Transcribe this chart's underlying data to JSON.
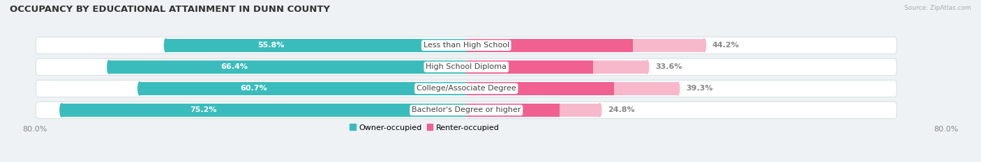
{
  "title": "OCCUPANCY BY EDUCATIONAL ATTAINMENT IN DUNN COUNTY",
  "source": "Source: ZipAtlas.com",
  "categories": [
    "Less than High School",
    "High School Diploma",
    "College/Associate Degree",
    "Bachelor's Degree or higher"
  ],
  "owner_values": [
    55.8,
    66.4,
    60.7,
    75.2
  ],
  "renter_values": [
    44.2,
    33.6,
    39.3,
    24.8
  ],
  "owner_color": "#3bbcbc",
  "renter_color": "#f06090",
  "renter_color_light": "#f8b8cc",
  "owner_label": "Owner-occupied",
  "renter_label": "Renter-occupied",
  "x_max": 80.0,
  "x_left_label": "80.0%",
  "x_right_label": "80.0%",
  "bar_height": 0.62,
  "bg_bar_height": 0.78,
  "title_fontsize": 9.5,
  "source_fontsize": 6.5,
  "legend_fontsize": 8,
  "value_fontsize": 8,
  "cat_fontsize": 8,
  "xlim_label_fontsize": 8,
  "background_color": "#eef2f4",
  "bar_bg_color": "#e8eef0",
  "bar_bg_edge": "#d8e2e5",
  "white": "#ffffff",
  "value_text_color": "#ffffff",
  "renter_value_text_color": "#888888",
  "cat_text_color": "#444444"
}
